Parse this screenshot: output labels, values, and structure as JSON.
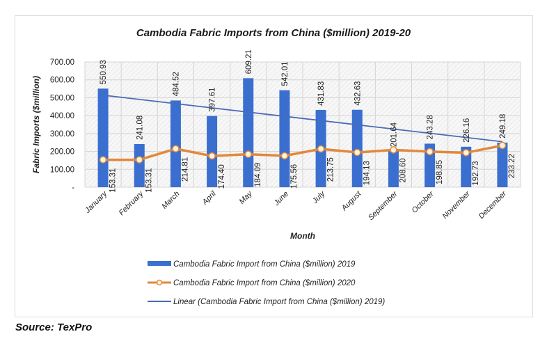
{
  "chart_data": {
    "type": "bar",
    "title": "Cambodia Fabric Imports from China ($million) 2019-20",
    "xlabel": "Month",
    "ylabel": "Fabric Imports ($million)",
    "ylim": [
      0,
      700
    ],
    "yticks": [
      0,
      100,
      200,
      300,
      400,
      500,
      600,
      700
    ],
    "ytick_labels": [
      "-",
      "100.00",
      "200.00",
      "300.00",
      "400.00",
      "500.00",
      "600.00",
      "700.00"
    ],
    "grid": true,
    "categories": [
      "January",
      "February",
      "March",
      "April",
      "May",
      "June",
      "July",
      "August",
      "September",
      "October",
      "November",
      "December"
    ],
    "series": [
      {
        "name": "Cambodia Fabric Import from China ($million) 2019",
        "type": "bar",
        "color": "#3a6fd0",
        "values": [
          550.93,
          241.08,
          484.52,
          397.61,
          609.21,
          542.01,
          431.83,
          432.63,
          201.64,
          243.28,
          226.16,
          249.18
        ],
        "labels": [
          "550.93",
          "241.08",
          "484.52",
          "397.61",
          "609.21",
          "542.01",
          "431.83",
          "432.63",
          "201.64",
          "243.28",
          "226.16",
          "249.18"
        ]
      },
      {
        "name": "Cambodia Fabric Import from China ($million) 2020",
        "type": "line",
        "color": "#e2883a",
        "values": [
          153.31,
          153.31,
          214.81,
          174.4,
          184.09,
          175.56,
          213.75,
          194.13,
          208.6,
          198.85,
          192.73,
          233.22
        ],
        "labels": [
          "153.31",
          "153.31",
          "214.81",
          "174.40",
          "184.09",
          "175.56",
          "213.75",
          "194.13",
          "208.60",
          "198.85",
          "192.73",
          "233.22"
        ]
      },
      {
        "name": "Linear (Cambodia Fabric Import from China ($million) 2019)",
        "type": "trendline",
        "color": "#4a6bb8"
      }
    ],
    "legend_position": "bottom"
  },
  "source": "Source: TexPro"
}
